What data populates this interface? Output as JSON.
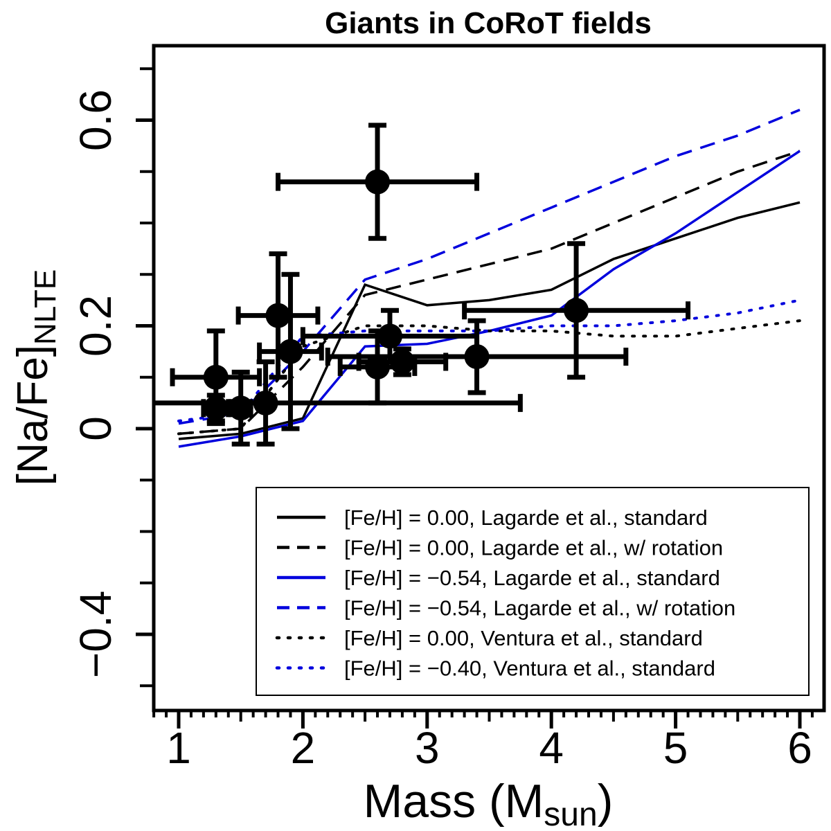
{
  "chart_data": {
    "type": "scatter",
    "title": "Giants in CoRoT fields",
    "xlabel": "Mass (M",
    "xlabel_sub": "sun",
    "xlabel_close": ")",
    "ylabel": "[Na/Fe]",
    "ylabel_sub": "NLTE",
    "xlim": [
      0.8,
      6.2
    ],
    "ylim": [
      -0.55,
      0.75
    ],
    "xticks_major": [
      1,
      2,
      3,
      4,
      5,
      6
    ],
    "xtick_labels": [
      "1",
      "2",
      "3",
      "4",
      "5",
      "6"
    ],
    "yticks_major": [
      -0.4,
      0,
      0.2,
      0.6
    ],
    "ytick_labels": [
      "−0.4",
      "0",
      "0.2",
      "0.6"
    ],
    "yticks_minor": [
      -0.5,
      -0.3,
      -0.2,
      -0.1,
      0.1,
      0.3,
      0.4,
      0.5,
      0.7
    ],
    "colors": {
      "black": "#000000",
      "blue": "#0000dd"
    },
    "points": [
      {
        "mass": 2.6,
        "mass_err": 0.8,
        "na_fe": 0.48,
        "na_fe_err": 0.11
      },
      {
        "mass": 1.8,
        "mass_err": 0.32,
        "na_fe": 0.22,
        "na_fe_err": 0.12
      },
      {
        "mass": 1.3,
        "mass_err": 0.35,
        "na_fe": 0.1,
        "na_fe_err": 0.09
      },
      {
        "mass": 1.3,
        "mass_err": 0.1,
        "na_fe": 0.04,
        "na_fe_err": 0.025
      },
      {
        "mass": 1.5,
        "mass_err": 0.08,
        "na_fe": 0.04,
        "na_fe_err": 0.07
      },
      {
        "mass": 1.7,
        "mass_err": 2.05,
        "na_fe": 0.05,
        "na_fe_err": 0.08
      },
      {
        "mass": 1.9,
        "mass_err": 0.25,
        "na_fe": 0.15,
        "na_fe_err": 0.15
      },
      {
        "mass": 2.6,
        "mass_err": 0.3,
        "na_fe": 0.12,
        "na_fe_err": 0.07
      },
      {
        "mass": 2.7,
        "mass_err": 0.7,
        "na_fe": 0.18,
        "na_fe_err": 0.05
      },
      {
        "mass": 2.8,
        "mass_err": 0.35,
        "na_fe": 0.13,
        "na_fe_err": 0.025
      },
      {
        "mass": 3.4,
        "mass_err": 1.2,
        "na_fe": 0.14,
        "na_fe_err": 0.07
      },
      {
        "mass": 4.2,
        "mass_err": 0.9,
        "na_fe": 0.23,
        "na_fe_err": 0.13
      }
    ],
    "series": [
      {
        "name": "[Fe/H] = 0.00, Lagarde et al., standard",
        "color": "black",
        "dash": "solid",
        "x": [
          1.0,
          1.5,
          2.0,
          2.5,
          3.0,
          3.5,
          4.0,
          4.5,
          5.0,
          5.5,
          6.0
        ],
        "y": [
          -0.02,
          -0.01,
          0.02,
          0.28,
          0.24,
          0.25,
          0.27,
          0.33,
          0.37,
          0.41,
          0.44
        ]
      },
      {
        "name": "[Fe/H] = 0.00, Lagarde et al., w/ rotation",
        "color": "black",
        "dash": "dashed",
        "x": [
          1.0,
          1.5,
          2.0,
          2.5,
          3.0,
          3.5,
          4.0,
          4.5,
          5.0,
          5.5,
          6.0
        ],
        "y": [
          -0.01,
          0.0,
          0.12,
          0.26,
          0.29,
          0.32,
          0.35,
          0.4,
          0.45,
          0.5,
          0.54
        ]
      },
      {
        "name": "[Fe/H] = −0.54, Lagarde et al., standard",
        "color": "blue",
        "dash": "solid",
        "x": [
          1.0,
          1.5,
          2.0,
          2.5,
          3.0,
          3.5,
          4.0,
          4.5,
          5.0,
          5.5,
          6.0
        ],
        "y": [
          -0.035,
          -0.015,
          0.015,
          0.16,
          0.165,
          0.19,
          0.22,
          0.31,
          0.38,
          0.46,
          0.54
        ]
      },
      {
        "name": "[Fe/H] = −0.54, Lagarde et al., w/ rotation",
        "color": "blue",
        "dash": "dashed",
        "x": [
          1.0,
          1.5,
          2.0,
          2.5,
          3.0,
          3.5,
          4.0,
          4.5,
          5.0,
          5.5,
          6.0
        ],
        "y": [
          0.01,
          0.03,
          0.15,
          0.29,
          0.33,
          0.38,
          0.43,
          0.48,
          0.53,
          0.57,
          0.62
        ]
      },
      {
        "name": "[Fe/H] = 0.00, Ventura et al., standard",
        "color": "black",
        "dash": "dotted",
        "x": [
          1.0,
          1.5,
          2.0,
          2.5,
          3.0,
          3.5,
          4.0,
          4.5,
          5.0,
          5.5,
          6.0
        ],
        "y": [
          -0.01,
          0.0,
          0.16,
          0.2,
          0.2,
          0.19,
          0.19,
          0.18,
          0.18,
          0.195,
          0.21
        ]
      },
      {
        "name": "[Fe/H] = −0.40, Ventura et al., standard",
        "color": "blue",
        "dash": "dotted",
        "x": [
          1.0,
          1.5,
          2.0,
          2.5,
          3.0,
          3.5,
          4.0,
          4.5,
          5.0,
          5.5,
          6.0
        ],
        "y": [
          0.015,
          0.03,
          0.18,
          0.19,
          0.19,
          0.19,
          0.2,
          0.2,
          0.21,
          0.225,
          0.25
        ]
      }
    ],
    "legend_position": "bottom-right"
  }
}
